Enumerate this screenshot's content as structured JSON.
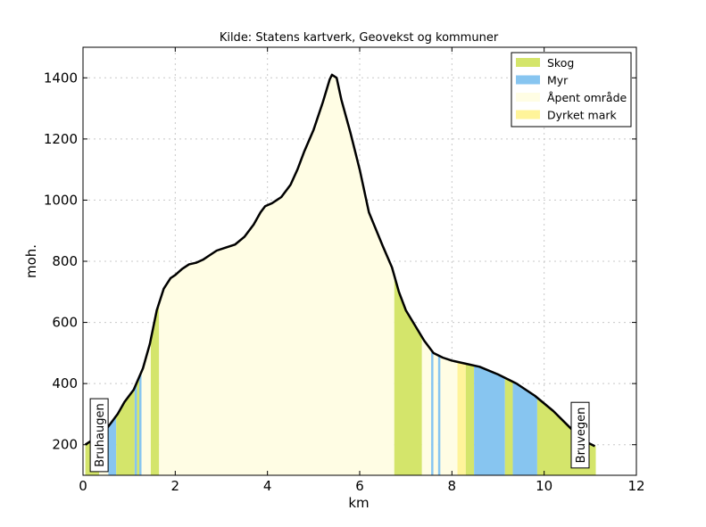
{
  "chart_data": {
    "type": "area",
    "title": "Kilde: Statens kartverk, Geovekst og kommuner",
    "xlabel": "km",
    "ylabel": "moh.",
    "xlim": [
      0,
      12
    ],
    "ylim": [
      100,
      1500
    ],
    "xticks": [
      0,
      2,
      4,
      6,
      8,
      10,
      12
    ],
    "yticks": [
      200,
      400,
      600,
      800,
      1000,
      1200,
      1400
    ],
    "grid": true,
    "legend_position": "top-right",
    "colors": {
      "Skog": "#d4e56b",
      "Myr": "#87c5f0",
      "Åpent område": "#fffde4",
      "Dyrket mark": "#fff49a"
    },
    "legend": [
      "Skog",
      "Myr",
      "Åpent område",
      "Dyrket mark"
    ],
    "terrain_segments": [
      {
        "start": 0.05,
        "end": 0.35,
        "type": "Skog"
      },
      {
        "start": 0.35,
        "end": 0.55,
        "type": "Åpent område"
      },
      {
        "start": 0.55,
        "end": 0.72,
        "type": "Myr"
      },
      {
        "start": 0.72,
        "end": 1.12,
        "type": "Skog"
      },
      {
        "start": 1.12,
        "end": 1.17,
        "type": "Myr"
      },
      {
        "start": 1.17,
        "end": 1.22,
        "type": "Skog"
      },
      {
        "start": 1.22,
        "end": 1.27,
        "type": "Myr"
      },
      {
        "start": 1.27,
        "end": 1.47,
        "type": "Åpent område"
      },
      {
        "start": 1.47,
        "end": 1.65,
        "type": "Skog"
      },
      {
        "start": 1.65,
        "end": 6.75,
        "type": "Åpent område"
      },
      {
        "start": 6.75,
        "end": 7.35,
        "type": "Skog"
      },
      {
        "start": 7.35,
        "end": 7.55,
        "type": "Åpent område"
      },
      {
        "start": 7.55,
        "end": 7.6,
        "type": "Myr"
      },
      {
        "start": 7.6,
        "end": 7.7,
        "type": "Åpent område"
      },
      {
        "start": 7.7,
        "end": 7.75,
        "type": "Myr"
      },
      {
        "start": 7.75,
        "end": 8.12,
        "type": "Åpent område"
      },
      {
        "start": 8.12,
        "end": 8.3,
        "type": "Dyrket mark"
      },
      {
        "start": 8.3,
        "end": 8.48,
        "type": "Skog"
      },
      {
        "start": 8.48,
        "end": 9.15,
        "type": "Myr"
      },
      {
        "start": 9.15,
        "end": 9.32,
        "type": "Skog"
      },
      {
        "start": 9.32,
        "end": 9.85,
        "type": "Myr"
      },
      {
        "start": 9.85,
        "end": 11.12,
        "type": "Skog"
      }
    ],
    "profile": {
      "x": [
        0.05,
        0.3,
        0.5,
        0.75,
        0.9,
        1.1,
        1.3,
        1.45,
        1.6,
        1.75,
        1.9,
        2.0,
        2.15,
        2.3,
        2.45,
        2.6,
        2.75,
        2.9,
        3.1,
        3.3,
        3.5,
        3.7,
        3.85,
        3.95,
        4.1,
        4.2,
        4.3,
        4.5,
        4.65,
        4.8,
        5.0,
        5.2,
        5.35,
        5.4,
        5.5,
        5.6,
        5.8,
        6.0,
        6.2,
        6.5,
        6.7,
        6.85,
        7.0,
        7.2,
        7.4,
        7.6,
        7.8,
        8.0,
        8.3,
        8.6,
        9.0,
        9.4,
        9.8,
        10.2,
        10.6,
        10.9,
        11.1
      ],
      "y": [
        200,
        225,
        250,
        300,
        340,
        380,
        450,
        530,
        640,
        710,
        745,
        755,
        775,
        790,
        795,
        805,
        820,
        835,
        845,
        855,
        880,
        920,
        960,
        980,
        990,
        1000,
        1010,
        1050,
        1100,
        1160,
        1230,
        1320,
        1395,
        1410,
        1400,
        1330,
        1220,
        1100,
        960,
        850,
        780,
        700,
        640,
        590,
        540,
        500,
        485,
        475,
        465,
        455,
        430,
        400,
        360,
        310,
        250,
        210,
        195
      ]
    },
    "annotations": [
      {
        "text": "Bruhaugen",
        "x": 0.37,
        "rotation": -90
      },
      {
        "text": "Bruvegen",
        "x": 10.8,
        "rotation": -90
      }
    ]
  }
}
